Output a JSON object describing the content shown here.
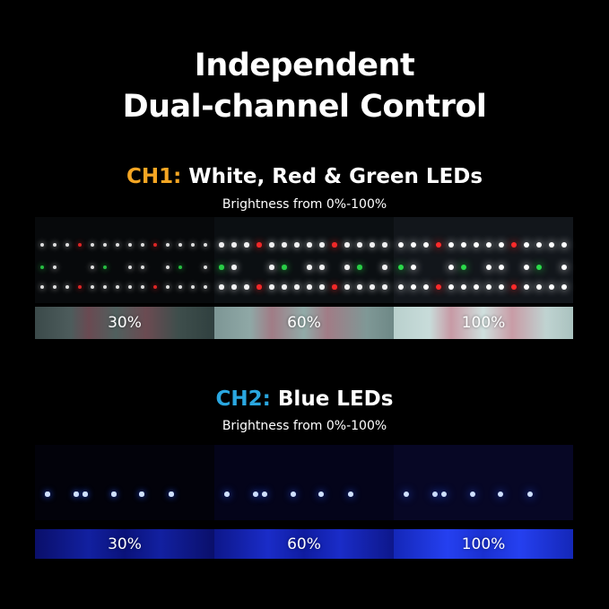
{
  "title_line1": "Independent",
  "title_line2": "Dual-channel Control",
  "ch1": {
    "prefix": "CH1:",
    "label": "White, Red & Green LEDs",
    "subtitle": "Brightness from 0%-100%",
    "prefix_color": "#f5a623",
    "levels": [
      "30%",
      "60%",
      "100%"
    ]
  },
  "ch2": {
    "prefix": "CH2:",
    "label": "Blue LEDs",
    "subtitle": "Brightness from 0%-100%",
    "prefix_color": "#2aa7e0",
    "levels": [
      "30%",
      "60%",
      "100%"
    ]
  }
}
